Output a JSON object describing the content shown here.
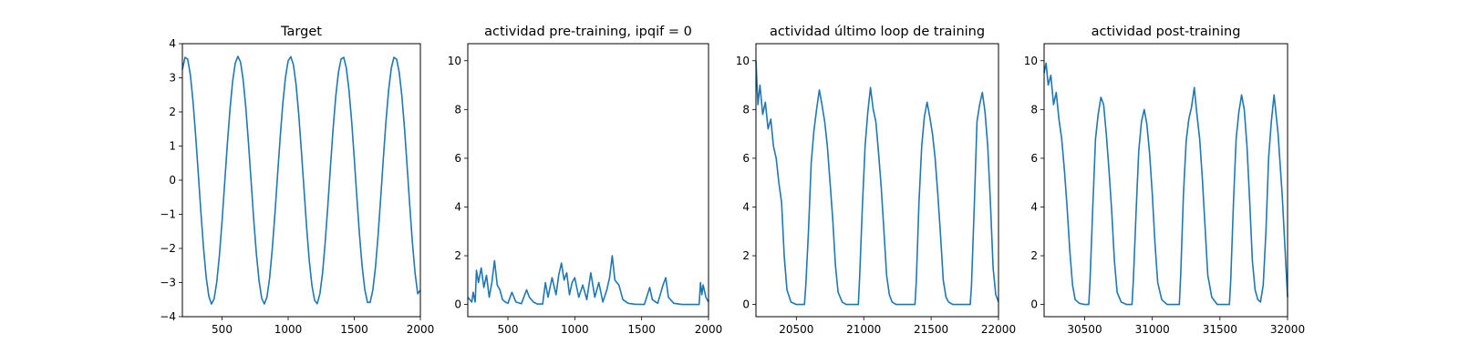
{
  "chart_data": [
    {
      "type": "line",
      "title": "Target",
      "xlim": [
        200,
        2000
      ],
      "ylim": [
        -4,
        4
      ],
      "xticks": [
        500,
        1000,
        1500,
        2000
      ],
      "yticks": [
        -4,
        -3,
        -2,
        -1,
        0,
        1,
        2,
        3,
        4
      ],
      "series_color": "#1f77b4",
      "series": [
        {
          "x": [
            200,
            220,
            240,
            260,
            280,
            300,
            320,
            340,
            360,
            380,
            400,
            420,
            440,
            460,
            480,
            500,
            520,
            540,
            560,
            580,
            600,
            620,
            640,
            660,
            680,
            700,
            720,
            740,
            760,
            780,
            800,
            820,
            840,
            860,
            880,
            900,
            920,
            940,
            960,
            980,
            1000,
            1020,
            1040,
            1060,
            1080,
            1100,
            1120,
            1140,
            1160,
            1180,
            1200,
            1220,
            1240,
            1260,
            1280,
            1300,
            1320,
            1340,
            1360,
            1380,
            1400,
            1420,
            1440,
            1460,
            1480,
            1500,
            1520,
            1540,
            1560,
            1580,
            1600,
            1620,
            1640,
            1660,
            1680,
            1700,
            1720,
            1740,
            1760,
            1780,
            1800,
            1820,
            1840,
            1860,
            1880,
            1900,
            1920,
            1940,
            1960,
            1980,
            2000
          ],
          "y": [
            3.24,
            3.6,
            3.55,
            3.1,
            2.33,
            1.33,
            0.21,
            -0.93,
            -1.98,
            -2.84,
            -3.4,
            -3.63,
            -3.48,
            -2.99,
            -2.21,
            -1.21,
            -0.08,
            1.05,
            2.07,
            2.89,
            3.43,
            3.63,
            3.46,
            2.93,
            2.12,
            1.09,
            -0.04,
            -1.17,
            -2.17,
            -2.95,
            -3.46,
            -3.63,
            -3.42,
            -2.86,
            -2.01,
            -0.99,
            0.16,
            1.27,
            2.26,
            3.02,
            3.5,
            3.62,
            3.38,
            2.8,
            1.93,
            0.86,
            -0.27,
            -1.39,
            -2.37,
            -3.09,
            -3.52,
            -3.62,
            -3.33,
            -2.73,
            -1.83,
            -0.76,
            0.4,
            1.51,
            2.45,
            3.15,
            3.55,
            3.6,
            3.29,
            2.64,
            1.74,
            0.64,
            -0.52,
            -1.62,
            -2.54,
            -3.21,
            -3.58,
            -3.58,
            -3.23,
            -2.57,
            -1.63,
            -0.52,
            0.64,
            1.73,
            2.64,
            3.28,
            3.6,
            3.55,
            3.16,
            2.47,
            1.52,
            0.4,
            -0.76,
            -1.84,
            -2.73,
            -3.33,
            -3.22
          ]
        }
      ]
    },
    {
      "type": "line",
      "title": "actividad pre-training, ipqif = 0",
      "xlim": [
        200,
        2000
      ],
      "ylim": [
        -0.5,
        10.7
      ],
      "xticks": [
        500,
        1000,
        1500,
        2000
      ],
      "yticks": [
        0,
        2,
        4,
        6,
        8,
        10
      ],
      "series_color": "#1f77b4",
      "series": [
        {
          "x": [
            200,
            230,
            240,
            255,
            265,
            280,
            300,
            320,
            340,
            360,
            380,
            400,
            420,
            440,
            460,
            480,
            500,
            530,
            560,
            600,
            640,
            660,
            690,
            720,
            760,
            780,
            800,
            830,
            860,
            880,
            900,
            920,
            940,
            960,
            980,
            1000,
            1030,
            1060,
            1090,
            1120,
            1150,
            1180,
            1210,
            1240,
            1260,
            1280,
            1300,
            1330,
            1360,
            1400,
            1450,
            1520,
            1560,
            1580,
            1620,
            1660,
            1680,
            1700,
            1740,
            1800,
            1880,
            1930,
            1940,
            1950,
            1960,
            1980,
            2000
          ],
          "y": [
            0.3,
            0.1,
            0.5,
            0.1,
            1.4,
            0.9,
            1.5,
            0.7,
            1.2,
            0.3,
            0.9,
            1.8,
            0.8,
            0.6,
            0.2,
            0.1,
            0.05,
            0.5,
            0.1,
            0.03,
            0.6,
            0.3,
            0.1,
            0.02,
            0.02,
            0.9,
            0.3,
            1.1,
            0.4,
            1.2,
            1.7,
            1.0,
            1.3,
            0.4,
            0.9,
            1.1,
            0.3,
            0.8,
            0.2,
            1.3,
            0.3,
            0.9,
            0.1,
            0.6,
            1.1,
            2.0,
            1.0,
            0.8,
            0.2,
            0.05,
            0.01,
            0.0,
            0.7,
            0.2,
            0.05,
            0.8,
            1.1,
            0.3,
            0.05,
            0.0,
            0.0,
            0.0,
            0.9,
            0.4,
            0.8,
            0.3,
            0.1
          ]
        }
      ]
    },
    {
      "type": "line",
      "title": "actividad último loop de training",
      "xlim": [
        20200,
        22000
      ],
      "ylim": [
        -0.5,
        10.7
      ],
      "xticks": [
        20500,
        21000,
        21500,
        22000
      ],
      "yticks": [
        0,
        2,
        4,
        6,
        8,
        10
      ],
      "series_color": "#1f77b4",
      "series": [
        {
          "x": [
            20200,
            20215,
            20230,
            20250,
            20270,
            20290,
            20310,
            20330,
            20350,
            20370,
            20390,
            20410,
            20430,
            20460,
            20500,
            20560,
            20570,
            20590,
            20610,
            20630,
            20650,
            20670,
            20690,
            20710,
            20730,
            20750,
            20770,
            20790,
            20810,
            20840,
            20870,
            20900,
            20960,
            20970,
            20990,
            21010,
            21030,
            21050,
            21070,
            21090,
            21110,
            21130,
            21150,
            21170,
            21190,
            21210,
            21240,
            21280,
            21380,
            21390,
            21410,
            21430,
            21450,
            21470,
            21490,
            21510,
            21530,
            21550,
            21570,
            21590,
            21610,
            21630,
            21660,
            21700,
            21790,
            21800,
            21820,
            21840,
            21860,
            21880,
            21900,
            21920,
            21940,
            21960,
            21980,
            22000
          ],
          "y": [
            10.0,
            8.2,
            9.0,
            7.8,
            8.3,
            7.2,
            7.6,
            6.5,
            6.0,
            5.0,
            4.2,
            2.0,
            0.6,
            0.1,
            0.0,
            0.0,
            0.8,
            3.0,
            5.8,
            7.1,
            8.0,
            8.8,
            8.2,
            7.5,
            6.5,
            5.0,
            3.5,
            1.6,
            0.5,
            0.1,
            0.0,
            0.0,
            0.0,
            1.2,
            4.0,
            6.5,
            7.9,
            8.9,
            8.0,
            7.5,
            6.2,
            4.8,
            3.0,
            1.2,
            0.4,
            0.1,
            0.0,
            0.0,
            0.0,
            1.0,
            4.2,
            6.5,
            7.7,
            8.3,
            7.7,
            7.0,
            6.0,
            4.5,
            2.8,
            1.0,
            0.3,
            0.1,
            0.0,
            0.0,
            0.0,
            0.8,
            4.0,
            7.5,
            8.2,
            8.7,
            7.9,
            6.5,
            4.2,
            1.5,
            0.4,
            0.1
          ]
        }
      ]
    },
    {
      "type": "line",
      "title": "actividad post-training",
      "xlim": [
        30200,
        32000
      ],
      "ylim": [
        -0.5,
        10.7
      ],
      "xticks": [
        30500,
        31000,
        31500,
        32000
      ],
      "yticks": [
        0,
        2,
        4,
        6,
        8,
        10
      ],
      "series_color": "#1f77b4",
      "series": [
        {
          "x": [
            30200,
            30215,
            30230,
            30250,
            30270,
            30290,
            30310,
            30330,
            30350,
            30370,
            30390,
            30410,
            30430,
            30460,
            30500,
            30530,
            30540,
            30560,
            30580,
            30600,
            30620,
            30640,
            30660,
            30680,
            30700,
            30720,
            30740,
            30770,
            30810,
            30850,
            30860,
            30880,
            30900,
            30920,
            30940,
            30960,
            30980,
            31000,
            31020,
            31040,
            31070,
            31110,
            31200,
            31210,
            31230,
            31250,
            31270,
            31290,
            31310,
            31330,
            31350,
            31370,
            31390,
            31410,
            31440,
            31480,
            31570,
            31580,
            31600,
            31620,
            31640,
            31660,
            31680,
            31700,
            31720,
            31740,
            31760,
            31780,
            31800,
            31820,
            31840,
            31860,
            31880,
            31900,
            31930,
            31960,
            32000
          ],
          "y": [
            9.5,
            9.9,
            9.0,
            9.4,
            8.2,
            8.7,
            7.6,
            6.8,
            5.5,
            4.0,
            2.2,
            0.8,
            0.2,
            0.05,
            0.0,
            0.0,
            1.0,
            4.0,
            6.8,
            7.8,
            8.5,
            8.2,
            7.0,
            5.5,
            3.8,
            1.8,
            0.5,
            0.1,
            0.0,
            0.0,
            1.0,
            3.8,
            6.3,
            7.5,
            8.0,
            7.4,
            6.2,
            4.5,
            2.5,
            0.9,
            0.2,
            0.0,
            0.0,
            1.2,
            4.5,
            6.7,
            7.6,
            8.1,
            8.9,
            7.8,
            6.8,
            5.2,
            3.2,
            1.2,
            0.3,
            0.0,
            0.0,
            1.0,
            4.2,
            6.8,
            7.9,
            8.6,
            8.0,
            6.5,
            4.2,
            1.8,
            0.6,
            0.2,
            0.1,
            0.8,
            3.0,
            6.0,
            7.5,
            8.6,
            7.0,
            4.5,
            0.3
          ]
        }
      ]
    }
  ]
}
